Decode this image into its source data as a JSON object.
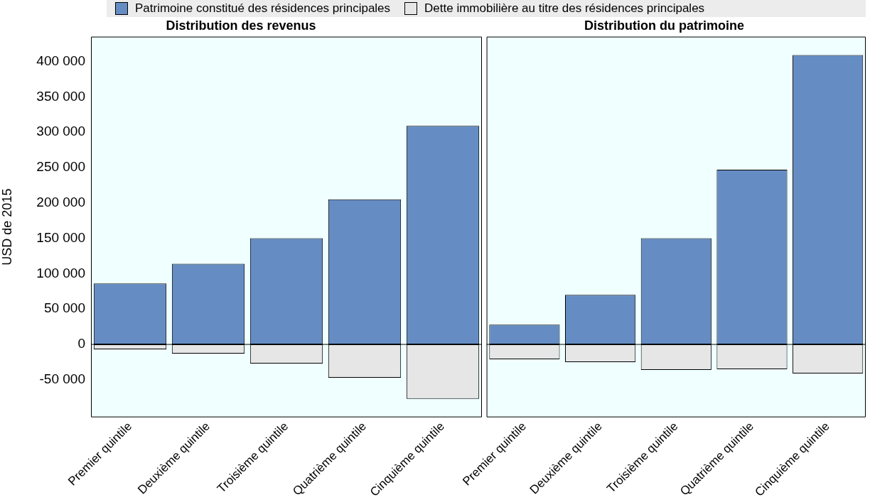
{
  "chart_data": [
    {
      "type": "bar",
      "title": "Distribution des revenus",
      "ylabel": "USD de 2015",
      "categories": [
        "Premier quintile",
        "Deuxième quintile",
        "Troisième quintile",
        "Quatrième quintile",
        "Cinquième quintile"
      ],
      "stacked": true,
      "legend": "top",
      "grid": false,
      "series": [
        {
          "name": "Patrimoine constitué des résidences principales",
          "color": "#658dc4",
          "values": [
            86000,
            114000,
            150000,
            205000,
            309000
          ]
        },
        {
          "name": "Dette immobilière au titre des résidences principales",
          "color": "#e6e6e6",
          "values": [
            -7000,
            -13000,
            -27000,
            -47000,
            -77000
          ]
        }
      ],
      "ylim": [
        -103000,
        435000
      ],
      "yticks": [
        {
          "value": -50000,
          "label": "-50 000"
        },
        0,
        {
          "value": 50000,
          "label": "50 000"
        },
        {
          "value": 100000,
          "label": "100 000"
        },
        {
          "value": 150000,
          "label": "150 000"
        },
        {
          "value": 200000,
          "label": "200 000"
        },
        {
          "value": 250000,
          "label": "250 000"
        },
        {
          "value": 300000,
          "label": "300 000"
        },
        {
          "value": 350000,
          "label": "350 000"
        },
        {
          "value": 400000,
          "label": "400 000"
        }
      ],
      "ref_lines": [
        {
          "axis": "y",
          "value": 0,
          "color": "#000000"
        }
      ]
    },
    {
      "type": "bar",
      "title": "Distribution du patrimoine",
      "categories": [
        "Premier quintile",
        "Deuxième quintile",
        "Troisième quintile",
        "Quatrième quintile",
        "Cinquième quintile"
      ],
      "stacked": true,
      "grid": false,
      "tick_labels": "x",
      "series": [
        {
          "color": "#658dc4",
          "values": [
            28000,
            70000,
            150000,
            247000,
            409000
          ]
        },
        {
          "color": "#e6e6e6",
          "values": [
            -21000,
            -25000,
            -36000,
            -35000,
            -41000
          ]
        }
      ],
      "ylim": [
        -103000,
        435000
      ],
      "ref_lines": [
        {
          "axis": "y",
          "value": 0,
          "color": "#000000"
        }
      ]
    }
  ]
}
